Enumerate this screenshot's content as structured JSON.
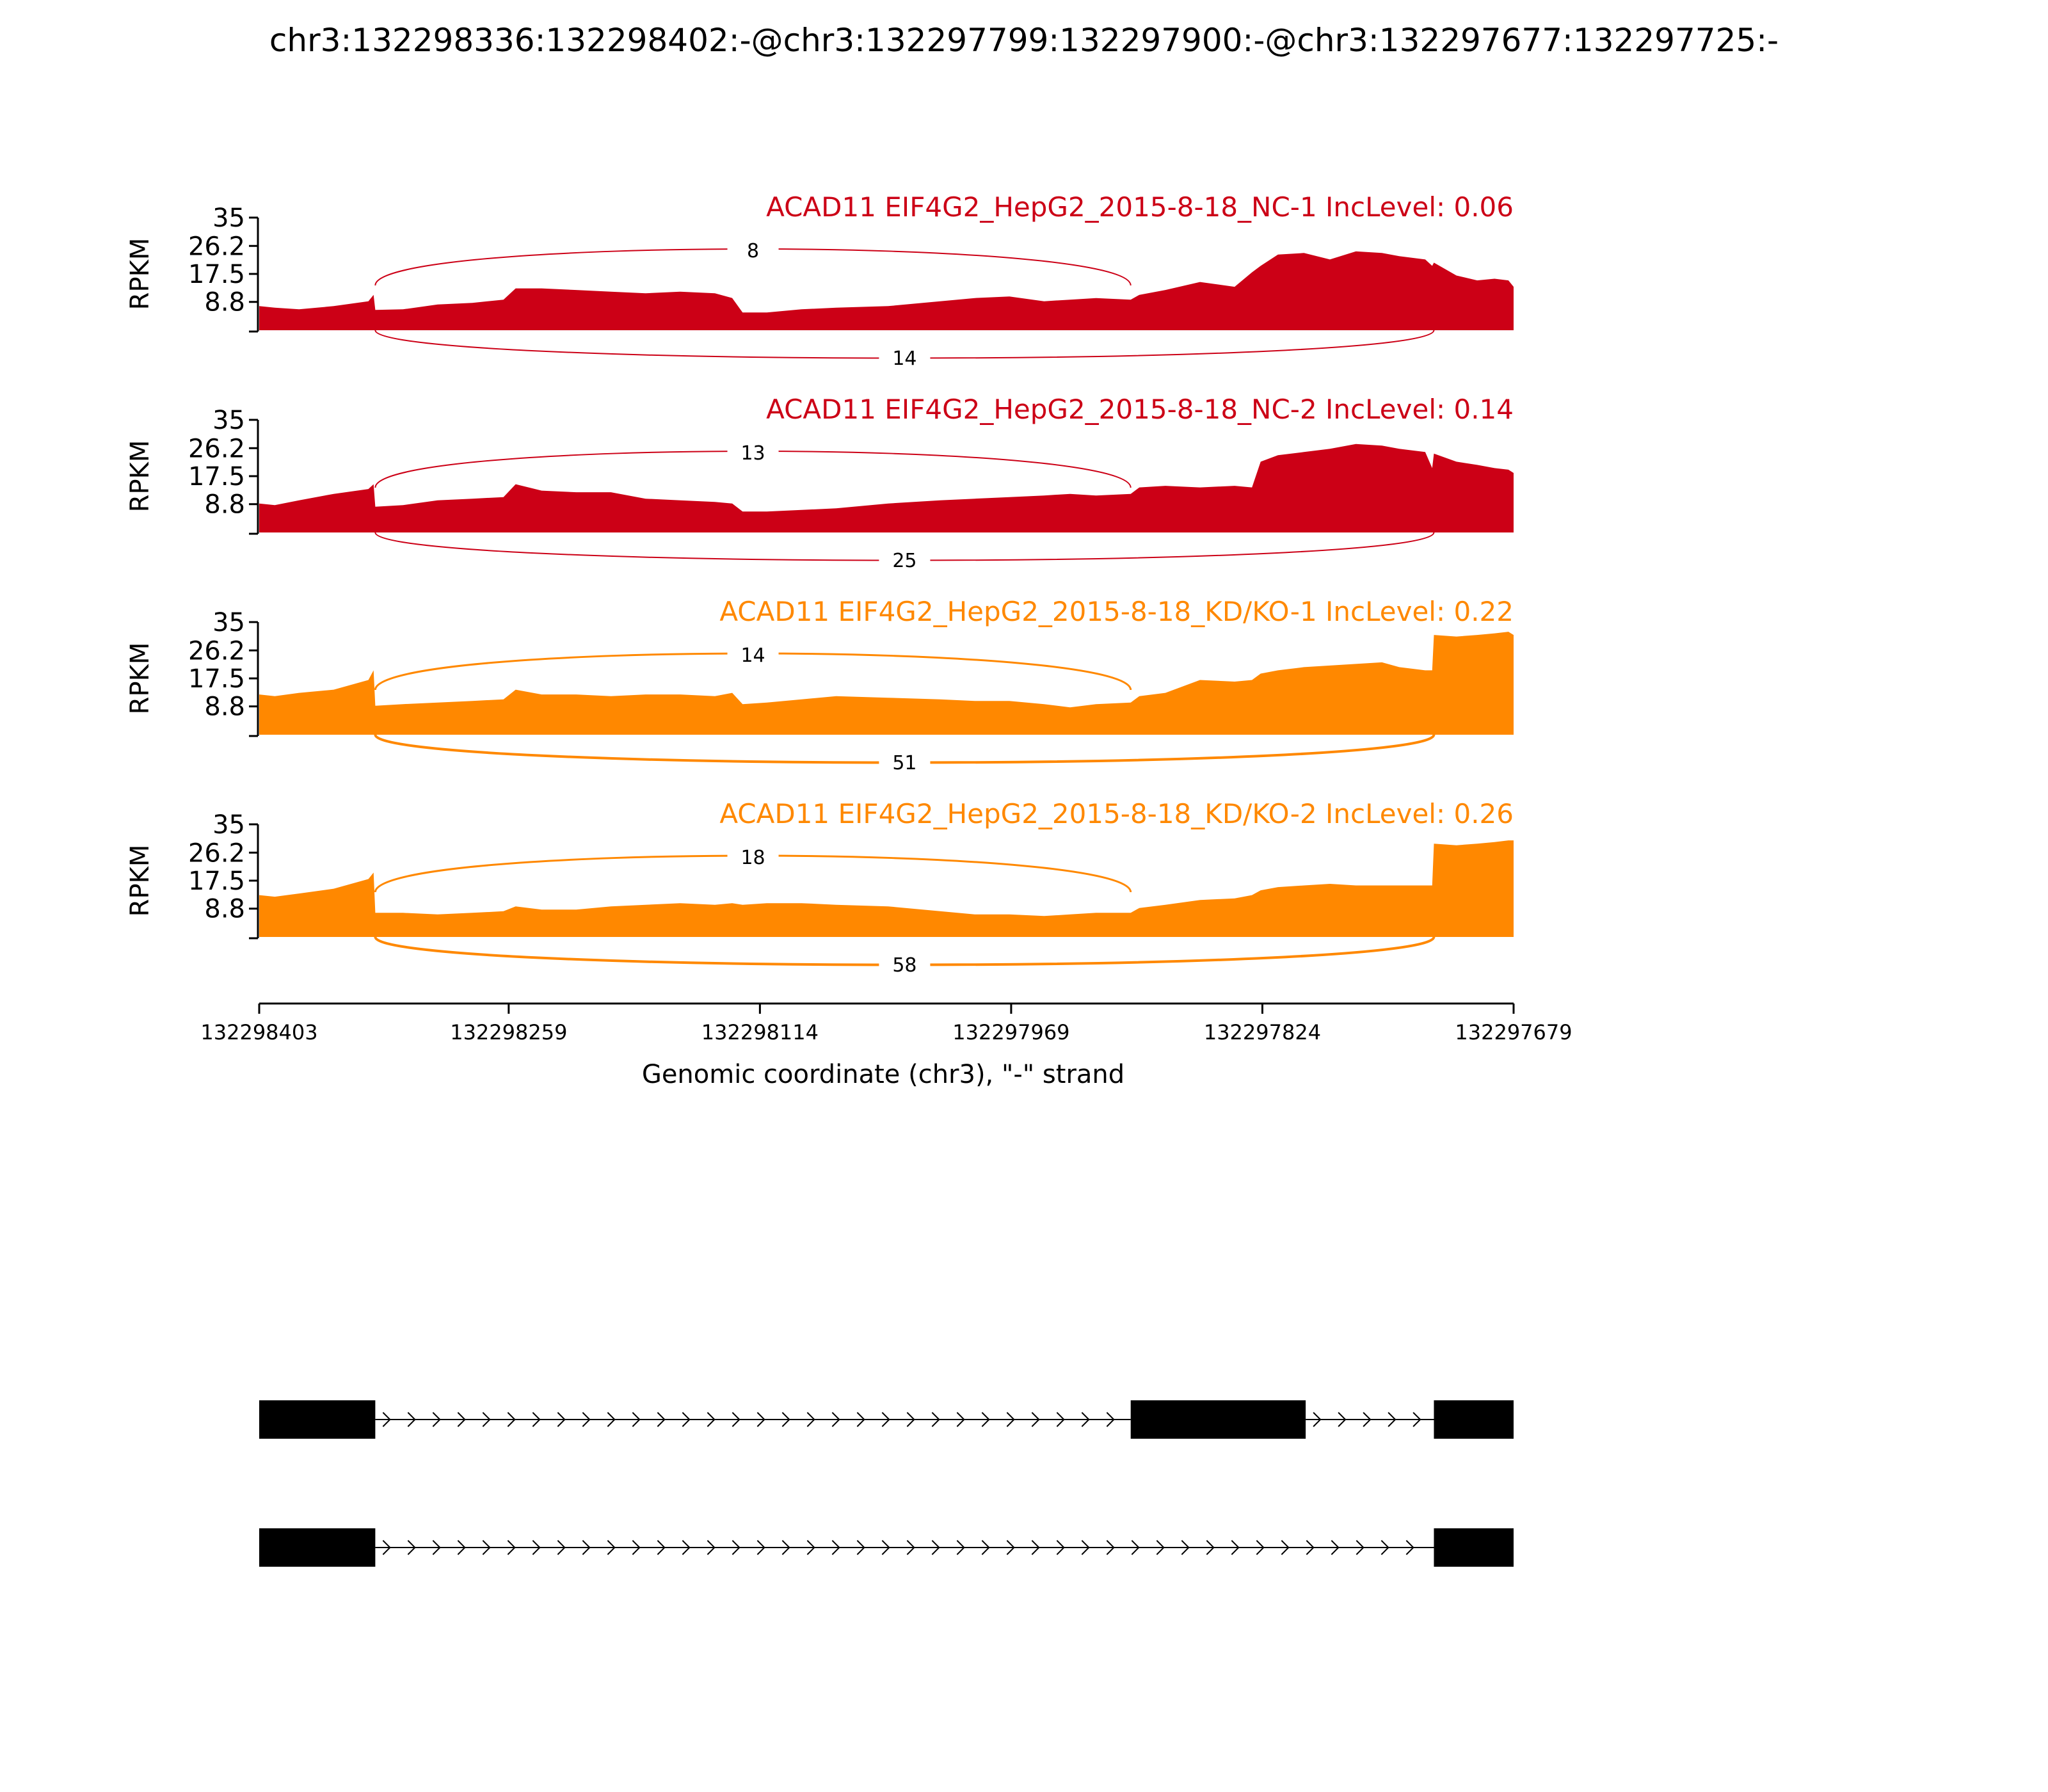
{
  "chart_data": {
    "type": "area",
    "title": "chr3:132298336:132298402:-@chr3:132297799:132297900:-@chr3:132297677:132297725:-",
    "xlabel": "Genomic coordinate (chr3), \"-\" strand",
    "ylabel": "RPKM",
    "x_ticks": [
      "132298403",
      "132298259",
      "132298114",
      "132297969",
      "132297824",
      "132297679"
    ],
    "x_tick_values": [
      132298403,
      132298259,
      132298114,
      132297969,
      132297824,
      132297679
    ],
    "xlim": [
      132298403,
      132297679
    ],
    "y_ticks": [
      "35",
      "26.2",
      "17.5",
      "8.8"
    ],
    "ylim": [
      0,
      35
    ],
    "colors": {
      "NC": "#cc0016",
      "KD": "#ff8800",
      "gene": "#000000"
    },
    "tracks": [
      {
        "label": "ACAD11 EIF4G2_HepG2_2015-8-18_NC-1 IncLevel: 0.06",
        "color": "#cc0016",
        "upper_junction": {
          "from": 132298336,
          "to": 132297900,
          "count": "8"
        },
        "lower_junction": {
          "from": 132298336,
          "to": 132297725,
          "count": "14"
        },
        "x": [
          132298403,
          132298394,
          132298380,
          132298360,
          132298340,
          132298337,
          132298336,
          132298320,
          132298300,
          132298280,
          132298262,
          132298255,
          132298240,
          132298220,
          132298200,
          132298180,
          132298160,
          132298140,
          132298130,
          132298124,
          132298110,
          132298090,
          132298070,
          132298040,
          132298010,
          132297990,
          132297970,
          132297950,
          132297935,
          132297920,
          132297900,
          132297895,
          132297880,
          132297860,
          132297840,
          132297830,
          132297825,
          132297815,
          132297800,
          132297785,
          132297770,
          132297755,
          132297745,
          132297730,
          132297726,
          132297725,
          132297712,
          132297700,
          132297690,
          132297682,
          132297679
        ],
        "y": [
          7.5,
          7,
          6.5,
          7.5,
          9,
          11,
          6.3,
          6.5,
          8,
          8.5,
          9.5,
          13,
          13,
          12.5,
          12,
          11.5,
          12,
          11.5,
          10,
          5.5,
          5.5,
          6.5,
          7,
          7.5,
          9,
          10,
          10.5,
          9,
          9.5,
          10,
          9.5,
          11,
          12.5,
          15,
          13.5,
          18,
          20,
          23.5,
          24,
          22,
          24.5,
          24,
          23,
          22,
          20,
          21,
          17,
          15.5,
          16,
          15.5,
          13.5
        ]
      },
      {
        "label": "ACAD11 EIF4G2_HepG2_2015-8-18_NC-2 IncLevel: 0.14",
        "color": "#cc0016",
        "upper_junction": {
          "from": 132298336,
          "to": 132297900,
          "count": "13"
        },
        "lower_junction": {
          "from": 132298336,
          "to": 132297725,
          "count": "25"
        },
        "x": [
          132298403,
          132298394,
          132298380,
          132298360,
          132298340,
          132298337,
          132298336,
          132298320,
          132298300,
          132298280,
          132298262,
          132298255,
          132298240,
          132298220,
          132298200,
          132298180,
          132298160,
          132298140,
          132298130,
          132298124,
          132298110,
          132298090,
          132298070,
          132298040,
          132298010,
          132297990,
          132297970,
          132297950,
          132297935,
          132297920,
          132297900,
          132297895,
          132297880,
          132297860,
          132297840,
          132297830,
          132297825,
          132297815,
          132297800,
          132297785,
          132297770,
          132297755,
          132297745,
          132297730,
          132297726,
          132297725,
          132297712,
          132297700,
          132297690,
          132297682,
          132297679
        ],
        "y": [
          9,
          8.5,
          10,
          12,
          13.5,
          15,
          8,
          8.5,
          10,
          10.5,
          11,
          15,
          13,
          12.5,
          12.5,
          10.5,
          10,
          9.5,
          9,
          6.5,
          6.5,
          7,
          7.5,
          9,
          10,
          10.5,
          11,
          11.5,
          12,
          11.5,
          12,
          14,
          14.5,
          14,
          14.5,
          14,
          22,
          24,
          25,
          26,
          27.5,
          27,
          26,
          25,
          20,
          24.5,
          22,
          21,
          20,
          19.5,
          18.5
        ]
      },
      {
        "label": "ACAD11 EIF4G2_HepG2_2015-8-18_KD/KO-1 IncLevel: 0.22",
        "color": "#ff8800",
        "upper_junction": {
          "from": 132298336,
          "to": 132297900,
          "count": "14"
        },
        "lower_junction": {
          "from": 132298336,
          "to": 132297725,
          "count": "51"
        },
        "x": [
          132298403,
          132298394,
          132298380,
          132298360,
          132298340,
          132298337,
          132298336,
          132298320,
          132298300,
          132298280,
          132298262,
          132298255,
          132298240,
          132298220,
          132298200,
          132298180,
          132298160,
          132298140,
          132298130,
          132298124,
          132298110,
          132298090,
          132298070,
          132298040,
          132298010,
          132297990,
          132297970,
          132297950,
          132297935,
          132297920,
          132297900,
          132297895,
          132297880,
          132297860,
          132297840,
          132297830,
          132297825,
          132297815,
          132297800,
          132297785,
          132297770,
          132297755,
          132297745,
          132297730,
          132297726,
          132297725,
          132297712,
          132297700,
          132297690,
          132297682,
          132297679
        ],
        "y": [
          12.5,
          12,
          13,
          14,
          17,
          20,
          9,
          9.5,
          10,
          10.5,
          11,
          14,
          12.5,
          12.5,
          12,
          12.5,
          12.5,
          12,
          13,
          9.5,
          10,
          11,
          12,
          11.5,
          11,
          10.5,
          10.5,
          9.5,
          8.5,
          9.5,
          10,
          12,
          13,
          17,
          16.5,
          17,
          19,
          20,
          21,
          21.5,
          22,
          22.5,
          21,
          20,
          20,
          31,
          30.5,
          31,
          31.5,
          32,
          31
        ]
      },
      {
        "label": "ACAD11 EIF4G2_HepG2_2015-8-18_KD/KO-2 IncLevel: 0.26",
        "color": "#ff8800",
        "upper_junction": {
          "from": 132298336,
          "to": 132297900,
          "count": "18"
        },
        "lower_junction": {
          "from": 132298336,
          "to": 132297725,
          "count": "58"
        },
        "x": [
          132298403,
          132298394,
          132298380,
          132298360,
          132298340,
          132298337,
          132298336,
          132298320,
          132298300,
          132298280,
          132298262,
          132298255,
          132298240,
          132298220,
          132298200,
          132298180,
          132298160,
          132298140,
          132298130,
          132298124,
          132298110,
          132298090,
          132298070,
          132298040,
          132298010,
          132297990,
          132297970,
          132297950,
          132297935,
          132297920,
          132297900,
          132297895,
          132297880,
          132297860,
          132297840,
          132297830,
          132297825,
          132297815,
          132297800,
          132297785,
          132297770,
          132297755,
          132297745,
          132297730,
          132297726,
          132297725,
          132297712,
          132297700,
          132297690,
          132297682,
          132297679
        ],
        "y": [
          13,
          12.5,
          13.5,
          15,
          18,
          20,
          7.5,
          7.5,
          7,
          7.5,
          8,
          9.5,
          8.5,
          8.5,
          9.5,
          10,
          10.5,
          10,
          10.5,
          10,
          10.5,
          10.5,
          10,
          9.5,
          8,
          7,
          7,
          6.5,
          7,
          7.5,
          7.5,
          9,
          10,
          11.5,
          12,
          13,
          14.5,
          15.5,
          16,
          16.5,
          16,
          16,
          16,
          16,
          16,
          29,
          28.5,
          29,
          29.5,
          30,
          30
        ]
      }
    ],
    "transcripts": [
      {
        "exons": [
          [
            132298403,
            132298336
          ],
          [
            132297900,
            132297799
          ],
          [
            132297725,
            132297679
          ]
        ]
      },
      {
        "exons": [
          [
            132298403,
            132298336
          ],
          [
            132297725,
            132297679
          ]
        ]
      }
    ]
  }
}
